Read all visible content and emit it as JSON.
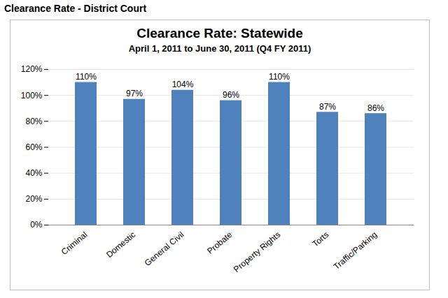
{
  "header": "Clearance Rate - District Court",
  "chart_data": {
    "type": "bar",
    "title": "Clearance Rate: Statewide",
    "subtitle": "April 1, 2011 to June 30, 2011 (Q4 FY 2011)",
    "categories": [
      "Criminal",
      "Domestic",
      "General Civil",
      "Probate",
      "Property Rights",
      "Torts",
      "Traffic/Parking"
    ],
    "values": [
      110,
      97,
      104,
      96,
      110,
      87,
      86
    ],
    "value_labels": [
      "110%",
      "97%",
      "104%",
      "96%",
      "110%",
      "87%",
      "86%"
    ],
    "data_labels": true,
    "color": "#4f81bd",
    "ylim": [
      0,
      120
    ],
    "yticks": [
      {
        "value": 0,
        "label": "0%"
      },
      {
        "value": 20,
        "label": "20%"
      },
      {
        "value": 40,
        "label": "40%"
      },
      {
        "value": 60,
        "label": "60%"
      },
      {
        "value": 80,
        "label": "80%"
      },
      {
        "value": 100,
        "label": "100%"
      },
      {
        "value": 120,
        "label": "120%"
      }
    ],
    "grid": true
  }
}
